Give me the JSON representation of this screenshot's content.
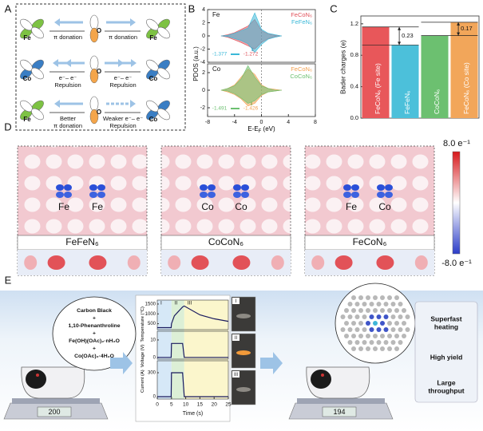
{
  "panel_labels": [
    "A",
    "B",
    "C",
    "D",
    "E"
  ],
  "panel_a": {
    "rows": [
      {
        "left": "Fe",
        "middle": "O",
        "right": "Fe",
        "left_text": [
          "π donation"
        ],
        "right_text": [
          "π donation"
        ]
      },
      {
        "left": "Co",
        "middle": "O",
        "right": "Co",
        "left_text": [
          "e⁻– e⁻",
          "Repulsion"
        ],
        "right_text": [
          "e⁻– e⁻",
          "Repulsion"
        ]
      },
      {
        "left": "Fe",
        "middle": "O",
        "right": "Co",
        "left_text": [
          "Better",
          "π donation"
        ],
        "right_text": [
          "Weaker e⁻– e⁻",
          "Repulsion"
        ]
      }
    ]
  },
  "chart_data": [
    {
      "type": "area",
      "element": "Fe",
      "y_label": "PDOS (a.u.)",
      "x": [
        -6,
        -5,
        -4,
        -3,
        -2,
        -1,
        0,
        1,
        2,
        3
      ],
      "xlim": [
        -8,
        8
      ],
      "ylim": [
        -4,
        4
      ],
      "yticks": [
        -4,
        -2,
        0,
        2,
        4
      ],
      "series": [
        {
          "name": "FeCoN₆",
          "color": "#e0505a",
          "d_band_center": -1.272,
          "values": [
            0,
            0.2,
            0.5,
            1.0,
            1.5,
            2.5,
            0.8,
            0.3,
            0.1,
            0
          ],
          "values_down": [
            0,
            -0.2,
            -0.6,
            -1.0,
            -1.5,
            -2.0,
            -1.0,
            -0.4,
            -0.1,
            0
          ]
        },
        {
          "name": "FeFeN₆",
          "color": "#3bb8d8",
          "d_band_center": -1.377,
          "values": [
            0,
            0.1,
            0.4,
            0.8,
            1.2,
            3.5,
            1.0,
            0.4,
            0.2,
            0
          ],
          "values_down": [
            0,
            -0.1,
            -0.4,
            -0.7,
            -1.2,
            -2.5,
            -1.3,
            -0.5,
            -0.2,
            0
          ]
        }
      ]
    },
    {
      "type": "area",
      "element": "Co",
      "x_label": [
        "E-E",
        "F",
        " (eV)"
      ],
      "x": [
        -6,
        -5,
        -4,
        -3,
        -2,
        -1,
        0,
        1,
        2,
        3
      ],
      "xlim": [
        -8,
        8
      ],
      "xticks": [
        -8,
        -4,
        0,
        4,
        8
      ],
      "ylim": [
        -3,
        3
      ],
      "yticks": [
        -2,
        0,
        2
      ],
      "series": [
        {
          "name": "FeCoN₆",
          "color": "#f2a050",
          "d_band_center": -1.426,
          "values": [
            0,
            0.2,
            0.6,
            1.5,
            2.4,
            1.8,
            0.6,
            0.2,
            0.1,
            0
          ],
          "values_down": [
            0,
            -0.2,
            -0.5,
            -1.0,
            -1.8,
            -1.5,
            -0.6,
            -0.2,
            -0.1,
            0
          ]
        },
        {
          "name": "CoCoN₆",
          "color": "#6cc070",
          "d_band_center": -1.491,
          "values": [
            0,
            0.2,
            0.5,
            1.3,
            2.8,
            1.5,
            0.5,
            0.2,
            0,
            0
          ],
          "values_down": [
            0,
            -0.1,
            -0.4,
            -0.9,
            -1.5,
            -1.2,
            -0.5,
            -0.2,
            -0.1,
            0
          ]
        }
      ]
    },
    {
      "type": "bar",
      "y_label": "Bader charges (e)",
      "categories": [
        "FeCoN₆ (Fe site)",
        "FeFeN₆",
        "CoCoN₆",
        "FeCoN₆ (Co site)"
      ],
      "values": [
        1.16,
        0.93,
        1.05,
        1.22
      ],
      "colors": [
        "#e8575a",
        "#4cc0da",
        "#6cc070",
        "#f2a65a"
      ],
      "ylim": [
        0,
        1.3
      ],
      "yticks": [
        {
          "value": 0,
          "label": "0.0"
        },
        0.4,
        0.8,
        1.2
      ],
      "differences": [
        0.23,
        0.17
      ]
    },
    {
      "type": "line",
      "x_label": "Time (s)",
      "x": [
        0,
        4.9,
        5,
        6,
        8.9,
        9.5,
        15,
        20,
        25
      ],
      "xlim": [
        0,
        25
      ],
      "xticks": [
        0,
        5,
        10,
        15,
        20,
        25
      ],
      "stages": [
        "I",
        "II",
        "III"
      ],
      "stage_edges": [
        0,
        5,
        9.5,
        25
      ],
      "series": [
        {
          "name": "Temperature (°C)",
          "color": "#1a1a5e",
          "values": [
            300,
            300,
            500,
            900,
            1350,
            1400,
            950,
            750,
            620
          ],
          "ylim": [
            200,
            1700
          ],
          "yticks": [
            500,
            1000,
            1500
          ]
        },
        {
          "name": "Voltage (V)",
          "color": "#1a1a5e",
          "values": [
            0,
            0,
            8,
            8,
            8,
            0,
            0,
            0,
            0
          ],
          "ylim": [
            -1,
            15
          ],
          "yticks": [
            0,
            10
          ]
        },
        {
          "name": "Current (A)",
          "color": "#1a1a5e",
          "values": [
            0,
            0,
            300,
            300,
            300,
            0,
            0,
            0,
            0
          ],
          "ylim": [
            -30,
            450
          ],
          "yticks": [
            0,
            300
          ]
        }
      ]
    }
  ],
  "panel_d": {
    "maps": [
      {
        "atoms": [
          "Fe",
          "Fe"
        ],
        "label": "FeFeN₆"
      },
      {
        "atoms": [
          "Co",
          "Co"
        ],
        "label": "CoCoN₆"
      },
      {
        "atoms": [
          "Fe",
          "Co"
        ],
        "label": "FeCoN₆"
      }
    ],
    "colorbar": {
      "max": "8.0 e⁻¹",
      "min": "-8.0 e⁻¹"
    }
  },
  "panel_e": {
    "precursors": [
      "Carbon Black",
      "+",
      "1,10-Phenanthroline",
      "+",
      "Fe(OH)(OAc)₂·nH₂O",
      "+",
      "Co(OAc)₂·4H₂O"
    ],
    "scale_before": "200",
    "scale_after": "194",
    "photo_labels": [
      "I",
      "II",
      "III"
    ],
    "features": [
      [
        "Superfast",
        "heating"
      ],
      [
        "High yield"
      ],
      [
        "Large",
        "throughput"
      ]
    ]
  }
}
